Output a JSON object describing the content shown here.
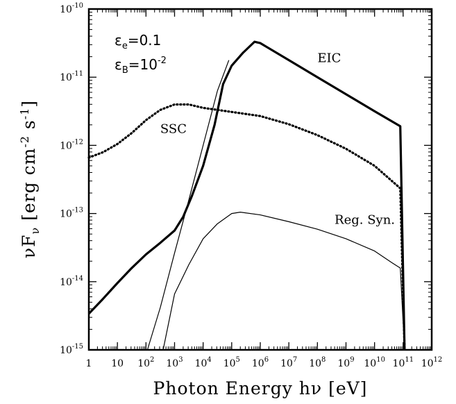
{
  "chart_data": {
    "type": "line",
    "xlabel": "Photon Energy hν [eV]",
    "ylabel": "νF_ν [erg cm^-2 s^-1]",
    "xscale": "log",
    "yscale": "log",
    "xlim_exp": [
      0,
      12
    ],
    "ylim_exp": [
      -15,
      -10
    ],
    "x_tick_labels": [
      {
        "exp": 0,
        "text": "1"
      },
      {
        "exp": 1,
        "text": "10"
      },
      {
        "exp": 2,
        "base": "10",
        "sup": "2"
      },
      {
        "exp": 3,
        "base": "10",
        "sup": "3"
      },
      {
        "exp": 4,
        "base": "10",
        "sup": "4"
      },
      {
        "exp": 5,
        "base": "10",
        "sup": "5"
      },
      {
        "exp": 6,
        "base": "10",
        "sup": "6"
      },
      {
        "exp": 7,
        "base": "10",
        "sup": "7"
      },
      {
        "exp": 8,
        "base": "10",
        "sup": "8"
      },
      {
        "exp": 9,
        "base": "10",
        "sup": "9"
      },
      {
        "exp": 10,
        "base": "10",
        "sup": "10"
      },
      {
        "exp": 11,
        "base": "10",
        "sup": "11"
      },
      {
        "exp": 12,
        "base": "10",
        "sup": "12"
      }
    ],
    "y_tick_labels": [
      {
        "exp": -15,
        "base": "10",
        "sup": "-15"
      },
      {
        "exp": -14,
        "base": "10",
        "sup": "-14"
      },
      {
        "exp": -13,
        "base": "10",
        "sup": "-13"
      },
      {
        "exp": -12,
        "base": "10",
        "sup": "-12"
      },
      {
        "exp": -11,
        "base": "10",
        "sup": "-11"
      },
      {
        "exp": -10,
        "base": "10",
        "sup": "-10"
      }
    ],
    "parameters": [
      {
        "symbol": "ε",
        "sub": "e",
        "value": "=0.1"
      },
      {
        "symbol": "ε",
        "sub": "B",
        "value": "=10",
        "sup": "-2"
      }
    ],
    "series": [
      {
        "label": "EIC",
        "style": "thick-solid",
        "points": [
          [
            0.0,
            -14.47
          ],
          [
            0.5,
            -14.25
          ],
          [
            1.0,
            -14.02
          ],
          [
            1.5,
            -13.8
          ],
          [
            2.0,
            -13.6
          ],
          [
            2.5,
            -13.43
          ],
          [
            3.0,
            -13.25
          ],
          [
            3.3,
            -13.05
          ],
          [
            3.6,
            -12.75
          ],
          [
            4.0,
            -12.3
          ],
          [
            4.4,
            -11.7
          ],
          [
            4.7,
            -11.1
          ],
          [
            5.0,
            -10.83
          ],
          [
            5.4,
            -10.64
          ],
          [
            5.8,
            -10.48
          ],
          [
            6.0,
            -10.5
          ],
          [
            7.0,
            -10.75
          ],
          [
            8.0,
            -11.0
          ],
          [
            9.0,
            -11.25
          ],
          [
            10.0,
            -11.5
          ],
          [
            10.9,
            -11.72
          ],
          [
            11.05,
            -15.0
          ]
        ]
      },
      {
        "label": "SSC",
        "style": "dotted",
        "points": [
          [
            0.0,
            -12.18
          ],
          [
            0.5,
            -12.1
          ],
          [
            1.0,
            -11.98
          ],
          [
            1.5,
            -11.82
          ],
          [
            2.0,
            -11.63
          ],
          [
            2.5,
            -11.48
          ],
          [
            3.0,
            -11.4
          ],
          [
            3.5,
            -11.4
          ],
          [
            4.0,
            -11.45
          ],
          [
            5.0,
            -11.51
          ],
          [
            6.0,
            -11.57
          ],
          [
            7.0,
            -11.69
          ],
          [
            8.0,
            -11.85
          ],
          [
            9.0,
            -12.05
          ],
          [
            10.0,
            -12.3
          ],
          [
            10.9,
            -12.63
          ],
          [
            11.05,
            -15.0
          ]
        ]
      },
      {
        "label": "Reg. Syn.",
        "style": "thin-solid",
        "points": [
          [
            2.6,
            -15.0
          ],
          [
            3.0,
            -14.18
          ],
          [
            3.5,
            -13.75
          ],
          [
            4.0,
            -13.37
          ],
          [
            4.5,
            -13.15
          ],
          [
            5.0,
            -13.0
          ],
          [
            5.3,
            -12.98
          ],
          [
            6.0,
            -13.02
          ],
          [
            7.0,
            -13.12
          ],
          [
            8.0,
            -13.23
          ],
          [
            9.0,
            -13.37
          ],
          [
            10.0,
            -13.55
          ],
          [
            10.6,
            -13.72
          ],
          [
            10.9,
            -13.8
          ],
          [
            11.05,
            -15.0
          ]
        ]
      },
      {
        "label": "",
        "style": "thin-solid",
        "points": [
          [
            2.05,
            -15.0
          ],
          [
            2.5,
            -14.38
          ],
          [
            3.0,
            -13.58
          ],
          [
            3.5,
            -12.8
          ],
          [
            4.0,
            -12.0
          ],
          [
            4.5,
            -11.2
          ],
          [
            4.9,
            -10.75
          ]
        ]
      }
    ],
    "annotations": [
      {
        "text": "EIC",
        "x_exp": 8.0,
        "y_exp": -10.78
      },
      {
        "text": "SSC",
        "x_exp": 2.5,
        "y_exp": -11.82
      },
      {
        "text": "Reg. Syn.",
        "x_exp": 8.6,
        "y_exp": -13.15
      }
    ]
  }
}
